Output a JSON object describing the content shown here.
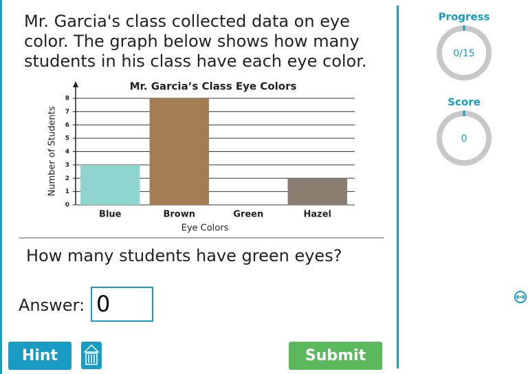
{
  "question": {
    "lines": [
      "Mr. Garcia's class collected data on eye",
      "color. The graph below shows how many",
      "students in his class have each eye color."
    ],
    "prompt": "How many students have green eyes?"
  },
  "chart_data": {
    "type": "bar",
    "title": "Mr. Garcia’s Class Eye Colors",
    "xlabel": "Eye Colors",
    "ylabel": "Number of Students",
    "categories": [
      "Blue",
      "Brown",
      "Green",
      "Hazel"
    ],
    "values": [
      3,
      8,
      0,
      2
    ],
    "colors": [
      "#8fd4cf",
      "#a57d52",
      "#5fa95f",
      "#8a7e70"
    ],
    "ylim": [
      0,
      8
    ],
    "yticks": [
      0,
      1,
      2,
      3,
      4,
      5,
      6,
      7,
      8
    ],
    "grid": true
  },
  "answer": {
    "label": "Answer:",
    "value": "0"
  },
  "buttons": {
    "hint": "Hint",
    "submit": "Submit"
  },
  "progress": {
    "label": "Progress",
    "value": "0/15"
  },
  "score": {
    "label": "Score",
    "value": "0"
  }
}
